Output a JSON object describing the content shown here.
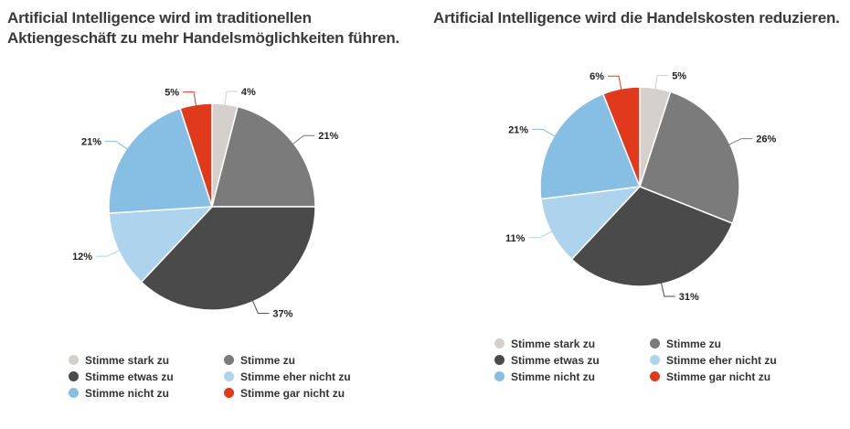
{
  "chart_data": [
    {
      "type": "pie",
      "title": "Artificial Intelligence wird im traditionellen Aktiengeschäft zu mehr Handelsmöglichkeiten führen.",
      "categories": [
        "Stimme stark zu",
        "Stimme zu",
        "Stimme etwas zu",
        "Stimme eher nicht zu",
        "Stimme nicht zu",
        "Stimme gar nicht zu"
      ],
      "values": [
        4,
        21,
        37,
        12,
        21,
        5
      ],
      "labels": [
        "4%",
        "21%",
        "37%",
        "12%",
        "21%",
        "5%"
      ],
      "colors": [
        "#d5d0cc",
        "#7b7b7b",
        "#4a4a4a",
        "#aed4ed",
        "#86bfe3",
        "#e0391c"
      ],
      "legend_position": "bottom"
    },
    {
      "type": "pie",
      "title": "Artificial Intelligence wird die Handelskosten reduzieren.",
      "categories": [
        "Stimme stark zu",
        "Stimme zu",
        "Stimme etwas zu",
        "Stimme eher nicht zu",
        "Stimme nicht zu",
        "Stimme gar nicht zu"
      ],
      "values": [
        5,
        26,
        31,
        11,
        21,
        6
      ],
      "labels": [
        "5%",
        "26%",
        "31%",
        "11%",
        "21%",
        "6%"
      ],
      "colors": [
        "#d5d0cc",
        "#7b7b7b",
        "#4a4a4a",
        "#aed4ed",
        "#86bfe3",
        "#e0391c"
      ],
      "legend_position": "bottom"
    }
  ]
}
